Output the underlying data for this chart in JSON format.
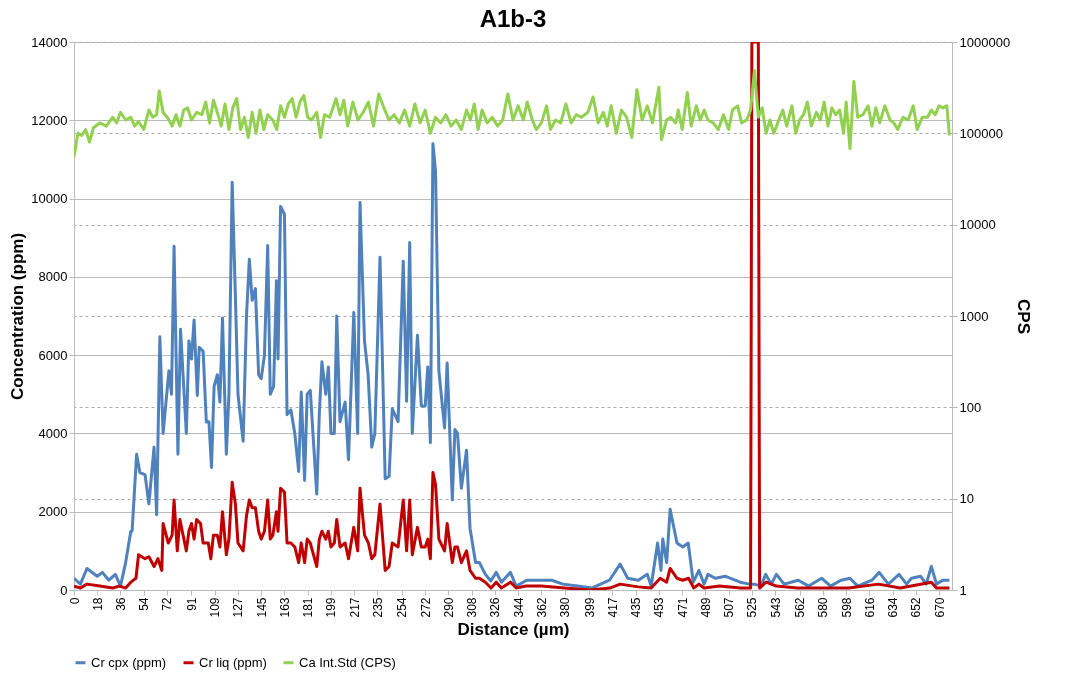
{
  "chart_data": {
    "type": "line",
    "title": "A1b-3",
    "xlabel": "Distance (µm)",
    "ylabel": "Concentration (ppm)",
    "y2label": "CPS",
    "xlim": [
      0,
      680
    ],
    "xticks": [
      0,
      18,
      36,
      54,
      72,
      91,
      109,
      127,
      145,
      163,
      181,
      199,
      217,
      235,
      254,
      272,
      290,
      308,
      326,
      344,
      362,
      380,
      399,
      417,
      435,
      453,
      471,
      489,
      507,
      525,
      543,
      562,
      580,
      598,
      616,
      634,
      652,
      670
    ],
    "ylim": [
      0,
      14000
    ],
    "yticks": [
      0,
      2000,
      4000,
      6000,
      8000,
      10000,
      12000,
      14000
    ],
    "y2lim": [
      1,
      1000000
    ],
    "y2ticks": [
      1,
      10,
      100,
      1000,
      10000,
      100000,
      1000000
    ],
    "log": "y2",
    "grid": true,
    "legend": "bottom",
    "line_style": "solid",
    "series": [
      {
        "name": "Cr cpx (ppm)",
        "color": "#4f81bd",
        "x": [
          0,
          5,
          10,
          18,
          22,
          27,
          32,
          36,
          40,
          44,
          45,
          48.5,
          51,
          55,
          58,
          62,
          64,
          66.5,
          69,
          73.5,
          75.5,
          77.5,
          80.5,
          82.5,
          87,
          89,
          91,
          93,
          95.5,
          97,
          100,
          102.5,
          104.5,
          106.5,
          108.5,
          111,
          113,
          115,
          118,
          120,
          122.5,
          125,
          127,
          131,
          133.6,
          135.8,
          138,
          140.5,
          143,
          145,
          147.5,
          150,
          152,
          154.6,
          156.8,
          158,
          160,
          163,
          165,
          168,
          171,
          174,
          176,
          178.6,
          180.6,
          183,
          188,
          190,
          192,
          195,
          197,
          199,
          201.6,
          203.5,
          206,
          210,
          212.6,
          216.7,
          219.7,
          221.5,
          225,
          227.8,
          230.6,
          233,
          237,
          241,
          244,
          246.5,
          251,
          255,
          257.6,
          260,
          262,
          266,
          269,
          272,
          274,
          276,
          278,
          280,
          282.6,
          287,
          289,
          293,
          295,
          297,
          300,
          304,
          306.7,
          311,
          314,
          318.6,
          322.8,
          327,
          331,
          338,
          342.5,
          350.6,
          362,
          370,
          378.7,
          390,
          401,
          414.7,
          423,
          428.8,
          437,
          444,
          447,
          452,
          454.6,
          456,
          459,
          461.7,
          467,
          471.5,
          475.7,
          479.6,
          484,
          488,
          491,
          496.6,
          504.7,
          516,
          523,
          527,
          532,
          535.7,
          540,
          544,
          550,
          561,
          569,
          579,
          586,
          594,
          601,
          607,
          618,
          623.6,
          630.7,
          639,
          644.8,
          648.6,
          655.7,
          660,
          664,
          668,
          672.7,
          678
        ],
        "values": [
          300,
          150,
          550,
          350,
          450,
          250,
          400,
          100,
          700,
          1500,
          1500,
          3470,
          3000,
          2950,
          2200,
          3650,
          1920,
          6470,
          4000,
          5600,
          5000,
          8780,
          3470,
          6660,
          4000,
          6360,
          5900,
          6900,
          4970,
          6200,
          6100,
          4290,
          4300,
          3130,
          5200,
          5500,
          4800,
          6950,
          3470,
          5000,
          10420,
          7500,
          5000,
          3800,
          7000,
          8450,
          7400,
          7700,
          5500,
          5400,
          6000,
          8800,
          5000,
          5200,
          7900,
          5900,
          9800,
          9600,
          4480,
          4600,
          4000,
          3030,
          5060,
          2800,
          5000,
          5100,
          2450,
          4500,
          5830,
          5000,
          5700,
          4000,
          4000,
          7000,
          4300,
          4800,
          3330,
          7090,
          4000,
          9900,
          6360,
          5500,
          3650,
          4000,
          8500,
          2840,
          2900,
          4630,
          4300,
          8400,
          4820,
          8880,
          4000,
          6510,
          4700,
          4700,
          5700,
          3760,
          11400,
          10700,
          5600,
          4140,
          5800,
          2300,
          4100,
          4000,
          2600,
          3570,
          1580,
          700,
          700,
          400,
          230,
          450,
          200,
          450,
          100,
          250,
          250,
          250,
          150,
          100,
          50,
          250,
          660,
          300,
          250,
          400,
          100,
          1200,
          500,
          1300,
          700,
          2060,
          1200,
          1100,
          1200,
          200,
          500,
          150,
          400,
          300,
          350,
          200,
          150,
          150,
          100,
          400,
          150,
          400,
          150,
          250,
          100,
          300,
          100,
          250,
          300,
          100,
          250,
          450,
          150,
          400,
          150,
          300,
          350,
          150,
          600,
          150,
          250,
          250
        ]
      },
      {
        "name": "Cr liq (ppm)",
        "color": "#c00000",
        "x": [
          0,
          5,
          10,
          20,
          30,
          35,
          40,
          44,
          48,
          50,
          55,
          58,
          62,
          65,
          68,
          69,
          73,
          76,
          77.5,
          80,
          82,
          87,
          89,
          91,
          93,
          95,
          98,
          100,
          104,
          106,
          108,
          111,
          113,
          115,
          118,
          120,
          122.5,
          125,
          127,
          131,
          133.6,
          135.8,
          138,
          140.5,
          143,
          145,
          147.5,
          150,
          152,
          154,
          156.8,
          158,
          160,
          163,
          165,
          168,
          171,
          174,
          176,
          178.6,
          180.6,
          183,
          188,
          190,
          192,
          195,
          197,
          199,
          201.6,
          203.5,
          206,
          210,
          212.6,
          216.7,
          219.7,
          221.5,
          225,
          228,
          230.6,
          233,
          237,
          241,
          244,
          246.5,
          251,
          255,
          257.6,
          260,
          262,
          266,
          269,
          272,
          274,
          276,
          278,
          280,
          282.6,
          287,
          289,
          293,
          295,
          297,
          300,
          304,
          306.7,
          311,
          314,
          318.6,
          323,
          327,
          331,
          338,
          342.5,
          350,
          362,
          380,
          400,
          415,
          423,
          437,
          447,
          454,
          459,
          461.7,
          467,
          471.5,
          476,
          480,
          484,
          488,
          500,
          516,
          523,
          524,
          525,
          530,
          531,
          536,
          544,
          560,
          600,
          623,
          640,
          664,
          668,
          678
        ],
        "values": [
          100,
          50,
          150,
          100,
          50,
          100,
          50,
          200,
          300,
          900,
          800,
          850,
          600,
          800,
          500,
          1700,
          1200,
          1400,
          2300,
          1000,
          1800,
          1000,
          1500,
          1700,
          1300,
          1800,
          1700,
          1200,
          1200,
          800,
          1400,
          1400,
          1100,
          2000,
          900,
          1300,
          2750,
          2200,
          1200,
          1000,
          1900,
          2300,
          2100,
          2100,
          1500,
          1300,
          1500,
          2300,
          1300,
          1400,
          2000,
          1500,
          2600,
          2500,
          1200,
          1200,
          1100,
          700,
          1200,
          700,
          1300,
          1200,
          600,
          1300,
          1500,
          1300,
          1500,
          1100,
          1200,
          1800,
          1100,
          1200,
          800,
          1600,
          1000,
          2600,
          1400,
          1200,
          800,
          900,
          2200,
          500,
          600,
          1200,
          1100,
          2300,
          1000,
          2300,
          900,
          1600,
          1100,
          1100,
          1300,
          800,
          3000,
          2700,
          1300,
          1000,
          1700,
          700,
          1100,
          1100,
          700,
          1000,
          500,
          300,
          300,
          200,
          50,
          200,
          50,
          200,
          50,
          100,
          100,
          50,
          0,
          50,
          150,
          80,
          50,
          300,
          200,
          550,
          300,
          250,
          300,
          50,
          150,
          50,
          100,
          50,
          50,
          50,
          14000,
          14000,
          50,
          200,
          100,
          50,
          50,
          150,
          50,
          200,
          50,
          50
        ]
      },
      {
        "name": "Ca Int.Std (CPS)",
        "color": "#92d050",
        "axis": "y2",
        "x": [
          0,
          3,
          6,
          9,
          12,
          15,
          20,
          25,
          30,
          33,
          36,
          40,
          44,
          47,
          50,
          54,
          58,
          61,
          64,
          66,
          69,
          73,
          76,
          79,
          82,
          85,
          88,
          91,
          95,
          99,
          102,
          105,
          108,
          111,
          114,
          117,
          120,
          123,
          126,
          129,
          132,
          135,
          138,
          141,
          144,
          147,
          150,
          154,
          157,
          160,
          163,
          166,
          169,
          172,
          175,
          178,
          181,
          184,
          188,
          191,
          194,
          198,
          203,
          206,
          209,
          212,
          216,
          220,
          224,
          228,
          232,
          236,
          240,
          244,
          248,
          252,
          256,
          260,
          264,
          268,
          272,
          276,
          280,
          284,
          288,
          292,
          296,
          300,
          304,
          307,
          310,
          313,
          316,
          320,
          324,
          328,
          332,
          336,
          340,
          344,
          348,
          351,
          355,
          358,
          362,
          366,
          369,
          373,
          377,
          381,
          385,
          389,
          393,
          398,
          402,
          406,
          410,
          413,
          416,
          420,
          424,
          428,
          432,
          436,
          440,
          444,
          448,
          453,
          455,
          459,
          462,
          466,
          468,
          471,
          475,
          478,
          482,
          485,
          488,
          491,
          495,
          499,
          503,
          507,
          510,
          514,
          517,
          521,
          524,
          527,
          530,
          533,
          536,
          539,
          542,
          545,
          549,
          552,
          556,
          559,
          562,
          565,
          568,
          571,
          575,
          578,
          581,
          584,
          587,
          590,
          593,
          596,
          598,
          601,
          604,
          607,
          611,
          615,
          618,
          621,
          624,
          628,
          632,
          635,
          638,
          642,
          646,
          650,
          653,
          657,
          661,
          664,
          667,
          670,
          673,
          676,
          678
        ],
        "values": [
          55000,
          100000,
          95000,
          110000,
          80000,
          115000,
          130000,
          120000,
          150000,
          130000,
          170000,
          140000,
          150000,
          120000,
          135000,
          110000,
          180000,
          150000,
          160000,
          290000,
          170000,
          145000,
          120000,
          160000,
          120000,
          180000,
          190000,
          140000,
          170000,
          160000,
          220000,
          130000,
          230000,
          170000,
          120000,
          210000,
          110000,
          190000,
          240000,
          110000,
          150000,
          90000,
          170000,
          100000,
          180000,
          110000,
          160000,
          140000,
          110000,
          200000,
          150000,
          210000,
          240000,
          150000,
          220000,
          260000,
          150000,
          140000,
          170000,
          90000,
          160000,
          150000,
          240000,
          160000,
          230000,
          120000,
          220000,
          140000,
          170000,
          220000,
          120000,
          270000,
          190000,
          140000,
          160000,
          130000,
          180000,
          120000,
          210000,
          130000,
          180000,
          100000,
          150000,
          130000,
          160000,
          120000,
          140000,
          110000,
          180000,
          140000,
          210000,
          110000,
          180000,
          130000,
          150000,
          120000,
          140000,
          270000,
          140000,
          200000,
          140000,
          220000,
          140000,
          110000,
          130000,
          200000,
          110000,
          140000,
          130000,
          210000,
          130000,
          160000,
          150000,
          170000,
          250000,
          130000,
          170000,
          120000,
          200000,
          100000,
          180000,
          150000,
          90000,
          300000,
          140000,
          200000,
          130000,
          320000,
          85000,
          140000,
          150000,
          130000,
          180000,
          110000,
          280000,
          120000,
          200000,
          140000,
          180000,
          140000,
          130000,
          110000,
          160000,
          110000,
          180000,
          200000,
          130000,
          140000,
          180000,
          490000,
          150000,
          190000,
          100000,
          140000,
          100000,
          130000,
          180000,
          120000,
          200000,
          100000,
          140000,
          160000,
          220000,
          120000,
          170000,
          140000,
          220000,
          120000,
          190000,
          160000,
          180000,
          100000,
          220000,
          68000,
          370000,
          150000,
          160000,
          200000,
          120000,
          190000,
          130000,
          200000,
          140000,
          130000,
          110000,
          150000,
          140000,
          200000,
          110000,
          150000,
          150000,
          180000,
          160000,
          200000,
          190000,
          200000,
          95000
        ]
      }
    ]
  }
}
